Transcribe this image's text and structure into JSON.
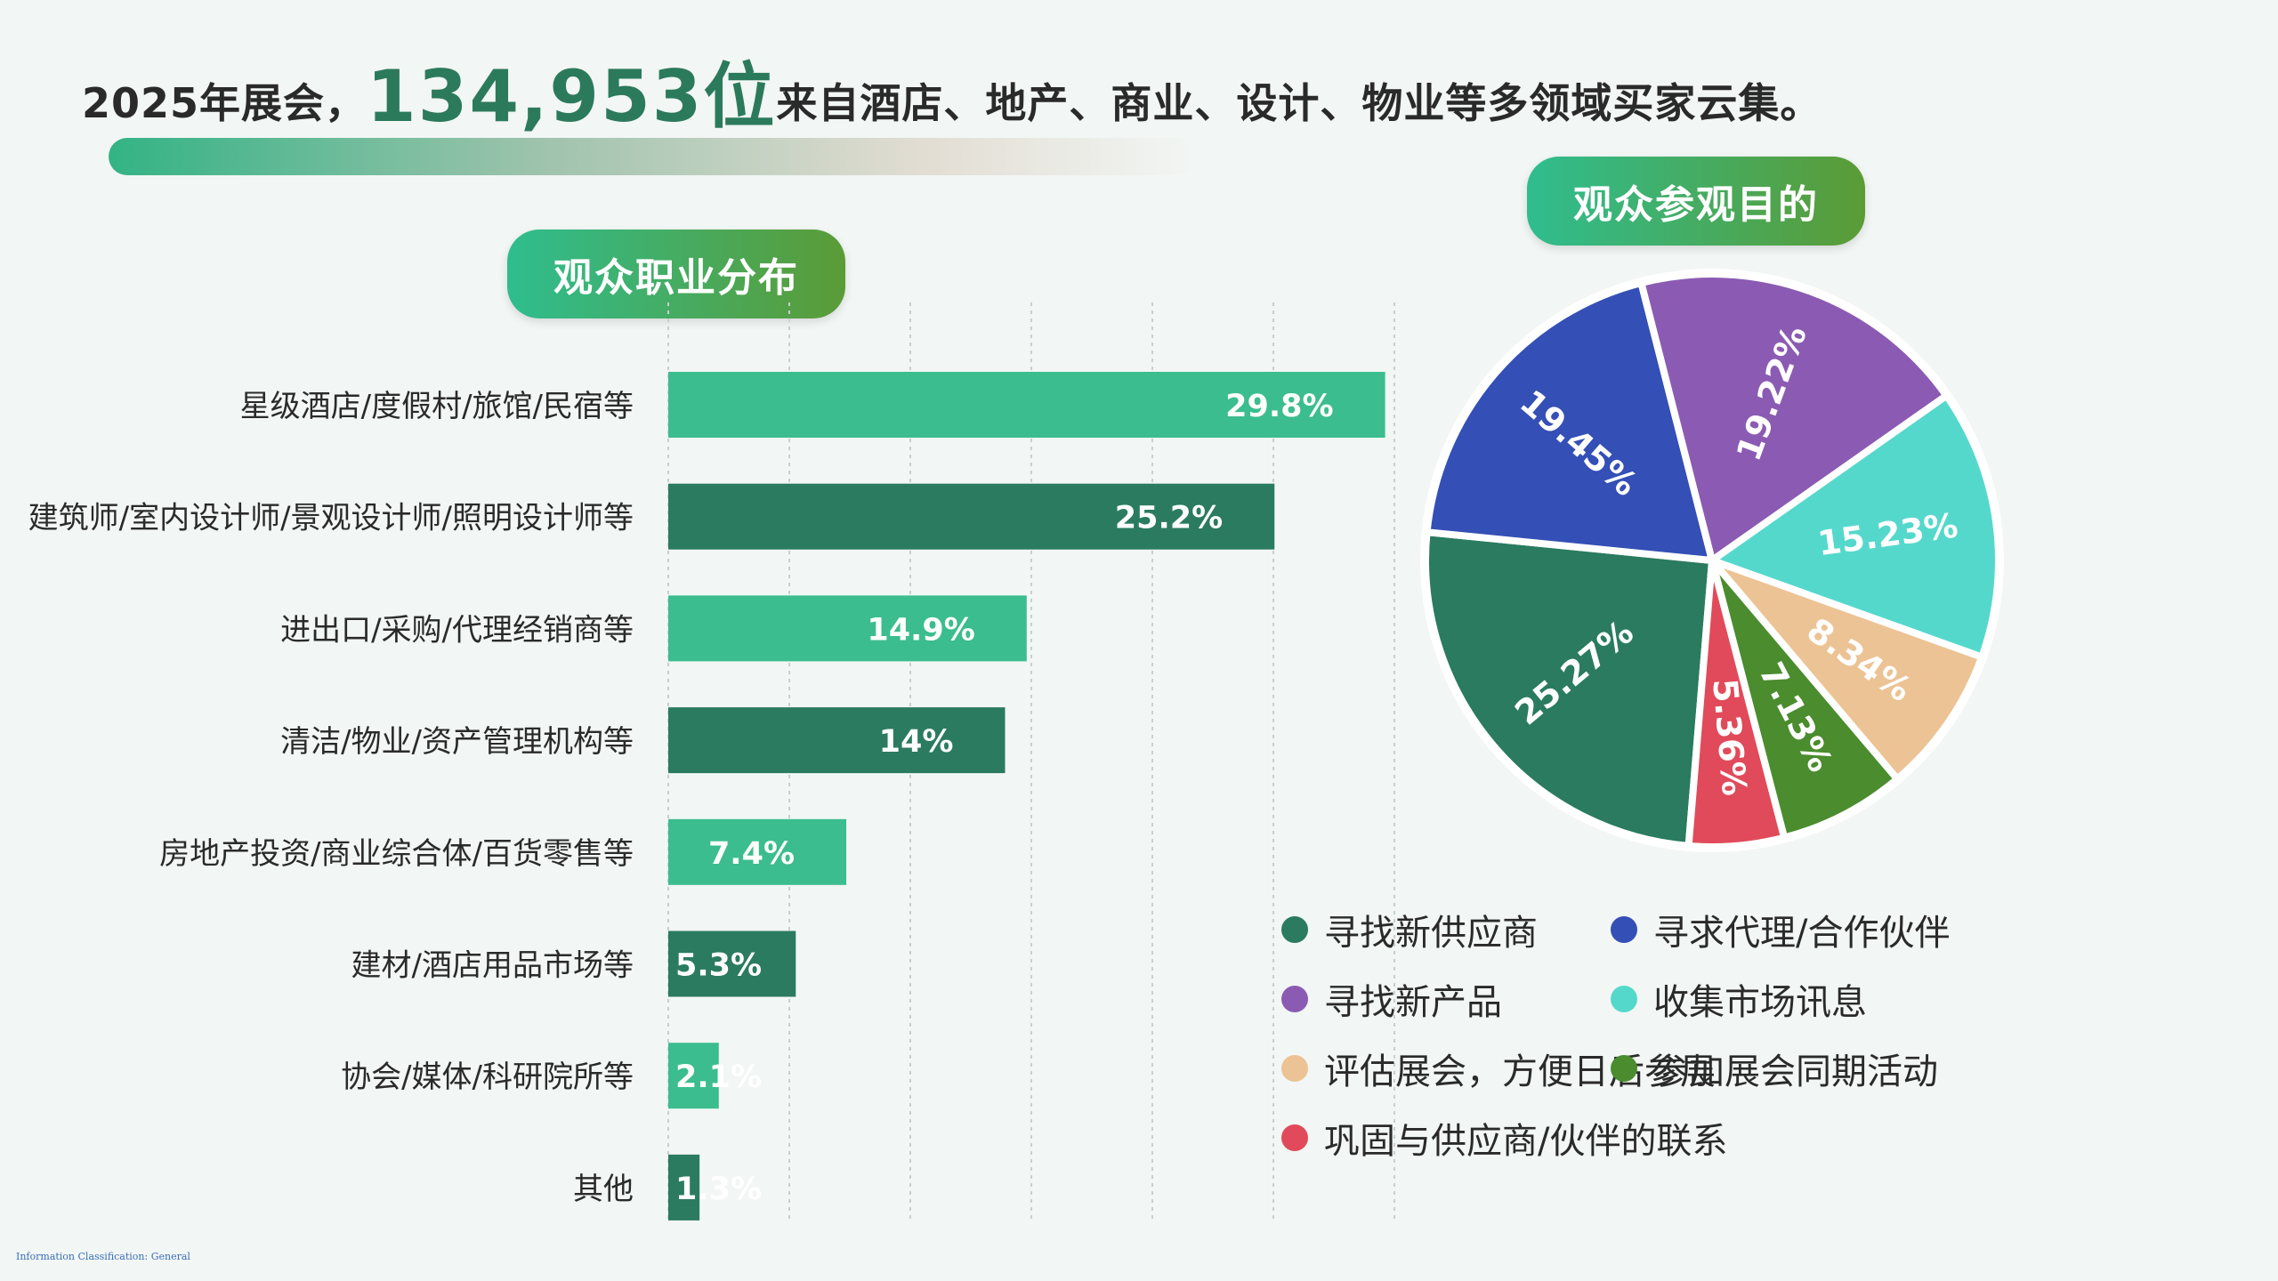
{
  "headline": {
    "prefix": "2025年展会，",
    "highlight": "134,953位",
    "suffix": "来自酒店、地产、商业、设计、物业等多领域买家云集。"
  },
  "occupation_title": "观众职业分布",
  "purpose_title": "观众参观目的",
  "footnote": "Information Classification: General",
  "colors": {
    "bar_light": "#3bbd8f",
    "bar_dark": "#2b7b60",
    "accent_green": "#2c7a5c"
  },
  "chart_data": [
    {
      "type": "bar",
      "orientation": "horizontal",
      "title": "观众职业分布",
      "categories": [
        "星级酒店/度假村/旅馆/民宿等",
        "建筑师/室内设计师/景观设计师/照明设计师等",
        "进出口/采购/代理经销商等",
        "清洁/物业/资产管理机构等",
        "房地产投资/商业综合体/百货零售等",
        "建材/酒店用品市场等",
        "协会/媒体/科研院所等",
        "其他"
      ],
      "values": [
        29.8,
        25.2,
        14.9,
        14,
        7.4,
        5.3,
        2.1,
        1.3
      ],
      "labels": [
        "29.8%",
        "25.2%",
        "14.9%",
        "14%",
        "7.4%",
        "5.3%",
        "2.1%",
        "1.3%"
      ],
      "xlim": [
        0,
        30
      ],
      "grid": true
    },
    {
      "type": "pie",
      "title": "观众参观目的",
      "slices": [
        {
          "name": "寻找新供应商",
          "value": 25.27,
          "label": "25.27%",
          "color": "#2a7b5f"
        },
        {
          "name": "寻求代理/合作伙伴",
          "value": 19.45,
          "label": "19.45%",
          "color": "#344fb5"
        },
        {
          "name": "寻找新产品",
          "value": 19.22,
          "label": "19.22%",
          "color": "#8b5bb3"
        },
        {
          "name": "收集市场讯息",
          "value": 15.23,
          "label": "15.23%",
          "color": "#55d8cc"
        },
        {
          "name": "评估展会，方便日后参展",
          "value": 8.34,
          "label": "8.34%",
          "color": "#ecc394"
        },
        {
          "name": "参加展会同期活动",
          "value": 7.13,
          "label": "7.13%",
          "color": "#4a8c2e"
        },
        {
          "name": "巩固与供应商/伙伴的联系",
          "value": 5.36,
          "label": "5.36%",
          "color": "#e14a5a"
        }
      ],
      "legend": [
        {
          "label": "寻找新供应商",
          "color": "#2a7b5f"
        },
        {
          "label": "寻求代理/合作伙伴",
          "color": "#344fb5"
        },
        {
          "label": "寻找新产品",
          "color": "#8b5bb3"
        },
        {
          "label": "收集市场讯息",
          "color": "#55d8cc"
        },
        {
          "label": "评估展会，方便日后参展",
          "color": "#ecc394"
        },
        {
          "label": "参加展会同期活动",
          "color": "#4a8c2e"
        },
        {
          "label": "巩固与供应商/伙伴的联系",
          "color": "#e14a5a"
        }
      ],
      "legend_position": "bottom"
    }
  ]
}
